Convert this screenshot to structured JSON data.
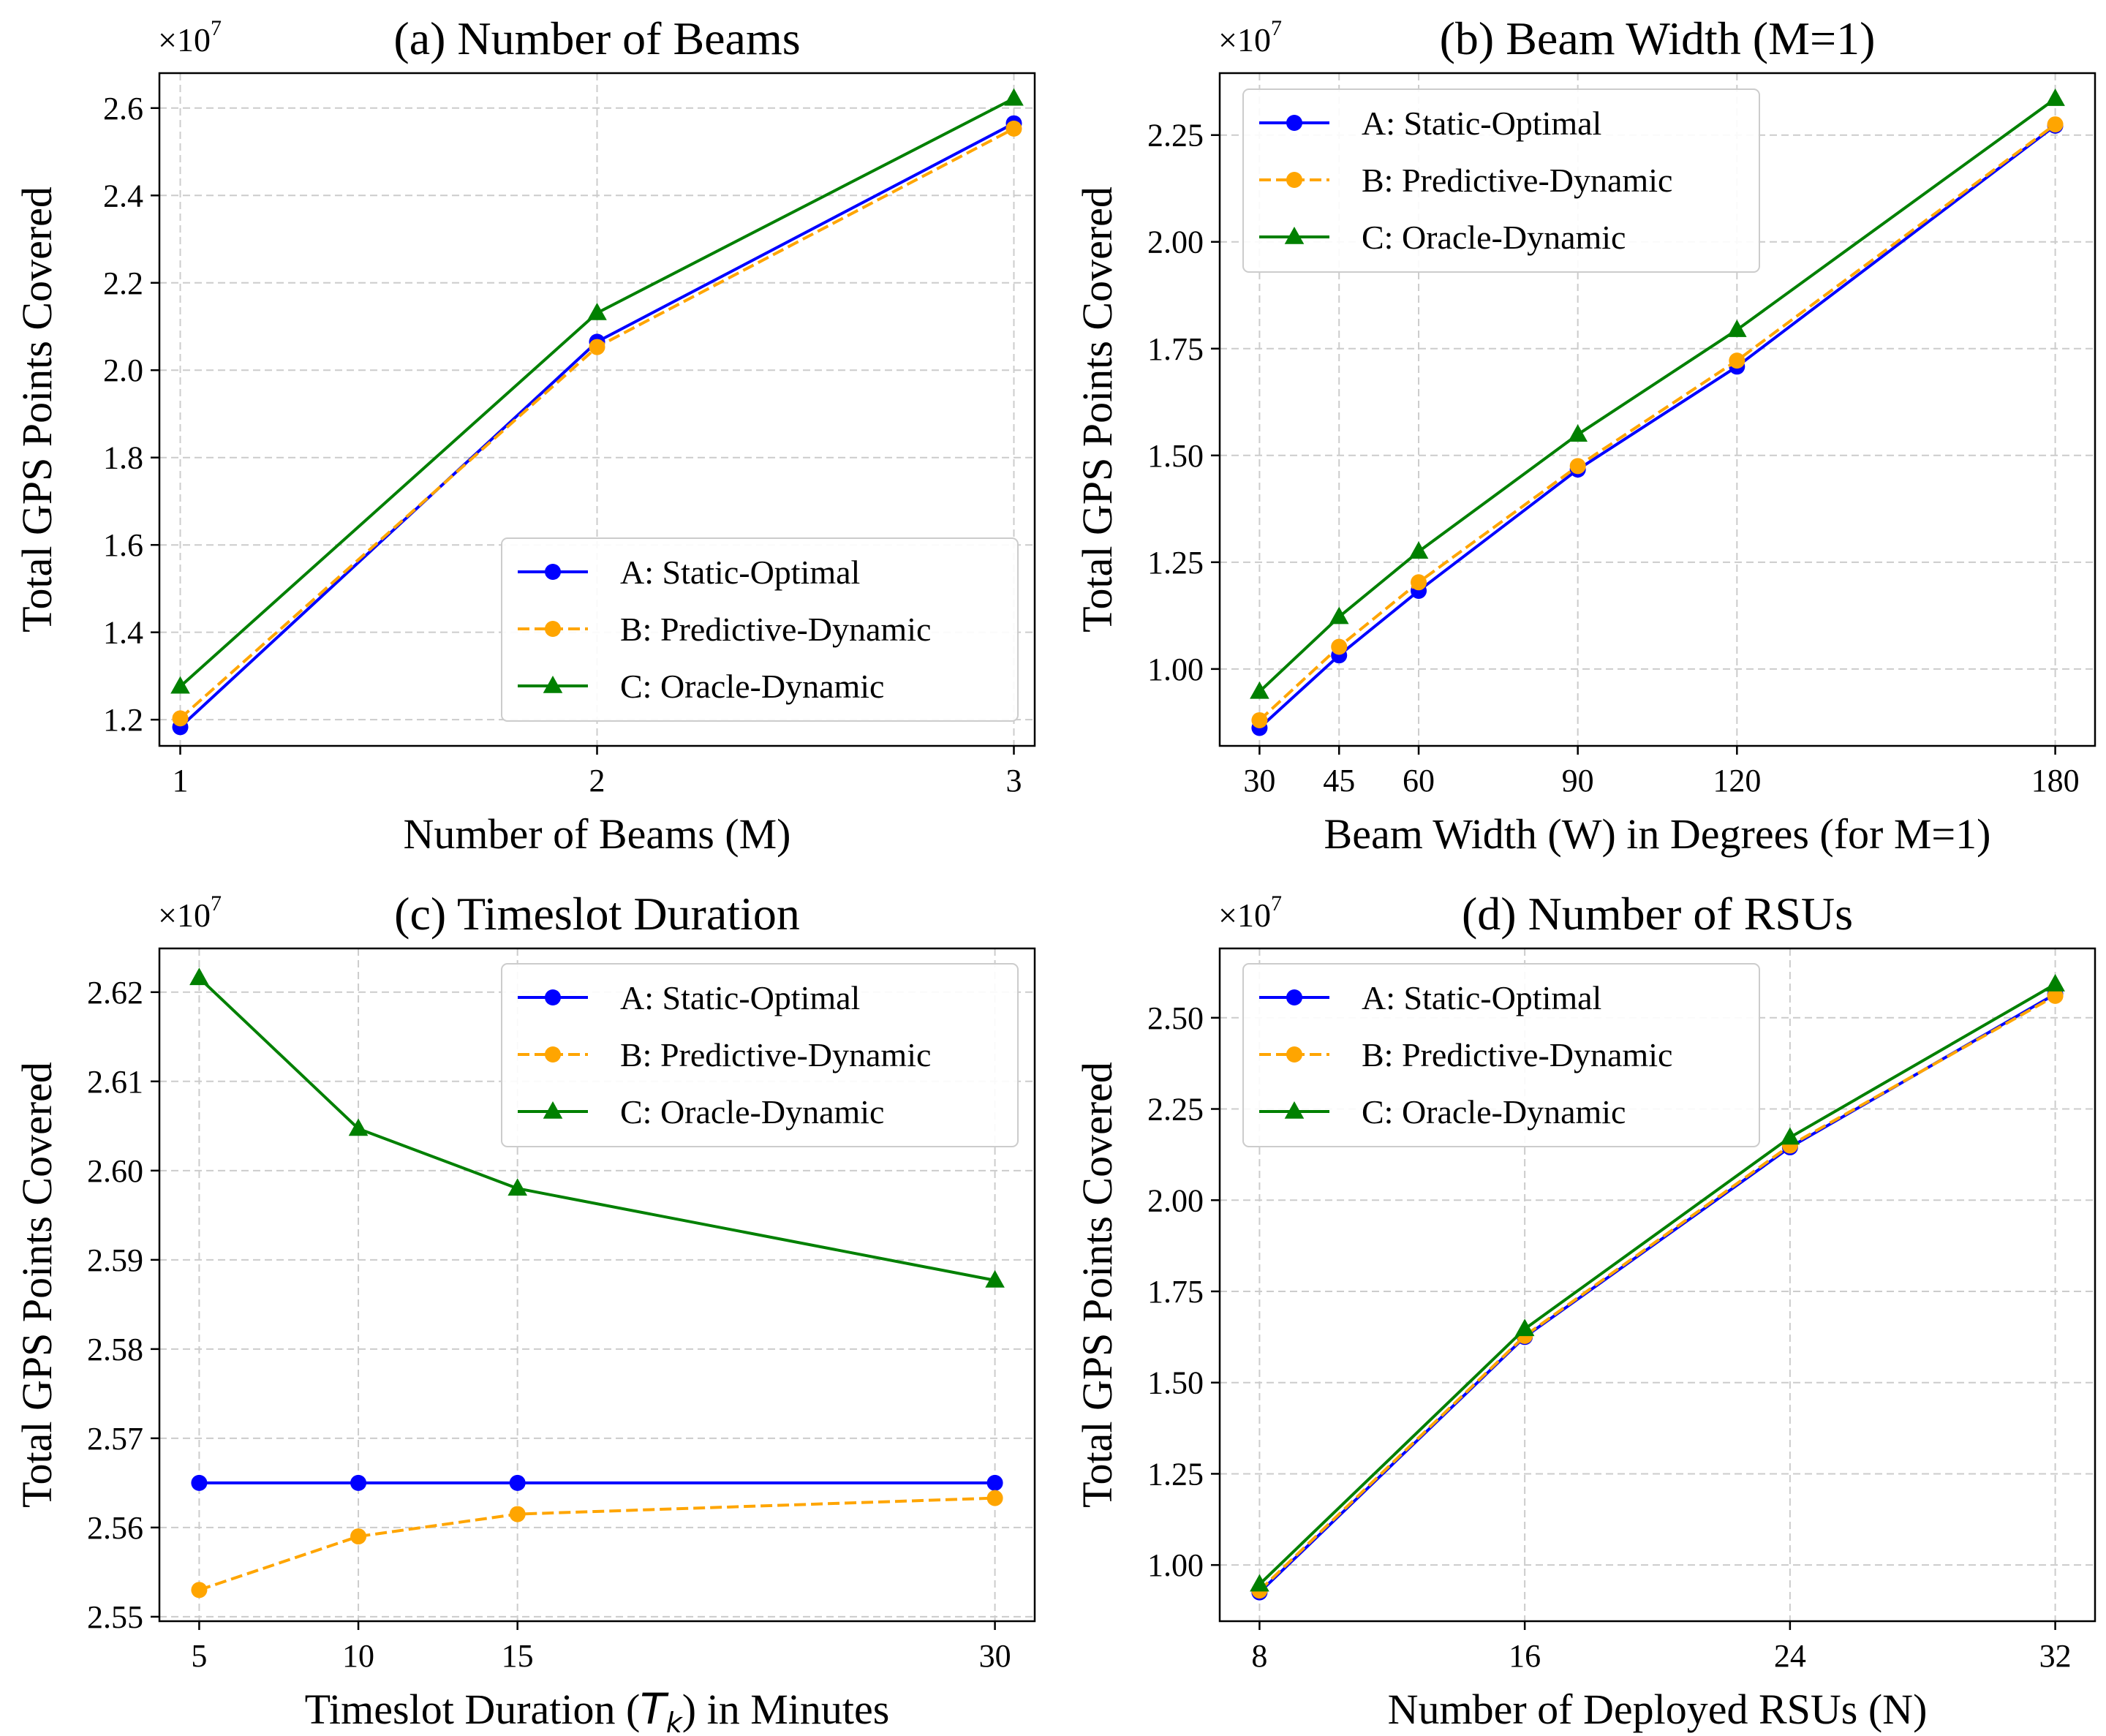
{
  "chart_data": [
    {
      "type": "line",
      "title": "(a) Number of Beams",
      "xlabel": "Number of Beams (M)",
      "ylabel": "Total GPS Points Covered",
      "y_multiplier": "×10",
      "y_multiplier_exp": "7",
      "x": [
        1,
        2,
        3
      ],
      "xticks": [
        1,
        2,
        3
      ],
      "xtick_labels": [
        "1",
        "2",
        "3"
      ],
      "xlim": [
        0.95,
        3.05
      ],
      "yticks": [
        1.2,
        1.4,
        1.6,
        1.8,
        2.0,
        2.2,
        2.4,
        2.6
      ],
      "ytick_labels": [
        "1.2",
        "1.4",
        "1.6",
        "1.8",
        "2.0",
        "2.2",
        "2.4",
        "2.6"
      ],
      "ylim": [
        1.14,
        2.68
      ],
      "grid": true,
      "legend_position": "lower-right",
      "series": [
        {
          "name": "A: Static-Optimal",
          "color": "#0000ff",
          "dash": "solid",
          "marker": "circle",
          "values": [
            1.183,
            2.065,
            2.565
          ]
        },
        {
          "name": "B: Predictive-Dynamic",
          "color": "#ffa500",
          "dash": "dashed",
          "marker": "circle",
          "values": [
            1.203,
            2.053,
            2.553
          ]
        },
        {
          "name": "C: Oracle-Dynamic",
          "color": "#008000",
          "dash": "solid",
          "marker": "triangle",
          "values": [
            1.276,
            2.131,
            2.622
          ]
        }
      ]
    },
    {
      "type": "line",
      "title": "(b) Beam Width (M=1)",
      "xlabel": "Beam Width (W) in Degrees (for M=1)",
      "ylabel": "Total GPS Points Covered",
      "y_multiplier": "×10",
      "y_multiplier_exp": "7",
      "x": [
        30,
        45,
        60,
        90,
        120,
        180
      ],
      "xticks": [
        30,
        45,
        60,
        90,
        120,
        180
      ],
      "xtick_labels": [
        "30",
        "45",
        "60",
        "90",
        "120",
        "180"
      ],
      "xlim": [
        22.5,
        187.5
      ],
      "yticks": [
        1.0,
        1.25,
        1.5,
        1.75,
        2.0,
        2.25
      ],
      "ytick_labels": [
        "1.00",
        "1.25",
        "1.50",
        "1.75",
        "2.00",
        "2.25"
      ],
      "ylim": [
        0.82,
        2.395
      ],
      "grid": true,
      "legend_position": "upper-left",
      "series": [
        {
          "name": "A: Static-Optimal",
          "color": "#0000ff",
          "dash": "solid",
          "marker": "circle",
          "values": [
            0.862,
            1.032,
            1.183,
            1.467,
            1.708,
            2.272
          ]
        },
        {
          "name": "B: Predictive-Dynamic",
          "color": "#ffa500",
          "dash": "dashed",
          "marker": "circle",
          "values": [
            0.88,
            1.052,
            1.203,
            1.475,
            1.722,
            2.275
          ]
        },
        {
          "name": "C: Oracle-Dynamic",
          "color": "#008000",
          "dash": "solid",
          "marker": "triangle",
          "values": [
            0.947,
            1.122,
            1.275,
            1.549,
            1.794,
            2.335
          ]
        }
      ]
    },
    {
      "type": "line",
      "title": "(c) Timeslot Duration",
      "xlabel": "Timeslot Duration (Tk) in Minutes",
      "xlabel_parts": [
        "Timeslot Duration (",
        "T",
        "k",
        ") in Minutes"
      ],
      "ylabel": "Total GPS Points Covered",
      "y_multiplier": "×10",
      "y_multiplier_exp": "7",
      "x": [
        5,
        10,
        15,
        30
      ],
      "xticks": [
        5,
        10,
        15,
        30
      ],
      "xtick_labels": [
        "5",
        "10",
        "15",
        "30"
      ],
      "xlim": [
        3.75,
        31.25
      ],
      "yticks": [
        2.55,
        2.56,
        2.57,
        2.58,
        2.59,
        2.6,
        2.61,
        2.62
      ],
      "ytick_labels": [
        "2.55",
        "2.56",
        "2.57",
        "2.58",
        "2.59",
        "2.60",
        "2.61",
        "2.62"
      ],
      "ylim": [
        2.5495,
        2.6249
      ],
      "grid": true,
      "legend_position": "upper-right",
      "series": [
        {
          "name": "A: Static-Optimal",
          "color": "#0000ff",
          "dash": "solid",
          "marker": "circle",
          "values": [
            2.565,
            2.565,
            2.565,
            2.565
          ]
        },
        {
          "name": "B: Predictive-Dynamic",
          "color": "#ffa500",
          "dash": "dashed",
          "marker": "circle",
          "values": [
            2.553,
            2.559,
            2.5615,
            2.5633
          ]
        },
        {
          "name": "C: Oracle-Dynamic",
          "color": "#008000",
          "dash": "solid",
          "marker": "triangle",
          "values": [
            2.6216,
            2.6047,
            2.598,
            2.5877
          ]
        }
      ]
    },
    {
      "type": "line",
      "title": "(d) Number of RSUs",
      "xlabel": "Number of Deployed RSUs (N)",
      "ylabel": "Total GPS Points Covered",
      "y_multiplier": "×10",
      "y_multiplier_exp": "7",
      "x": [
        8,
        16,
        24,
        32
      ],
      "xticks": [
        8,
        16,
        24,
        32
      ],
      "xtick_labels": [
        "8",
        "16",
        "24",
        "32"
      ],
      "xlim": [
        6.8,
        33.2
      ],
      "yticks": [
        1.0,
        1.25,
        1.5,
        1.75,
        2.0,
        2.25,
        2.5
      ],
      "ytick_labels": [
        "1.00",
        "1.25",
        "1.50",
        "1.75",
        "2.00",
        "2.25",
        "2.50"
      ],
      "ylim": [
        0.846,
        2.69
      ],
      "grid": true,
      "legend_position": "upper-left",
      "series": [
        {
          "name": "A: Static-Optimal",
          "color": "#0000ff",
          "dash": "solid",
          "marker": "circle",
          "values": [
            0.925,
            1.625,
            2.145,
            2.565
          ]
        },
        {
          "name": "B: Predictive-Dynamic",
          "color": "#ffa500",
          "dash": "dashed",
          "marker": "circle",
          "values": [
            0.93,
            1.628,
            2.15,
            2.56
          ]
        },
        {
          "name": "C: Oracle-Dynamic",
          "color": "#008000",
          "dash": "solid",
          "marker": "triangle",
          "values": [
            0.947,
            1.647,
            2.172,
            2.592
          ]
        }
      ]
    }
  ]
}
